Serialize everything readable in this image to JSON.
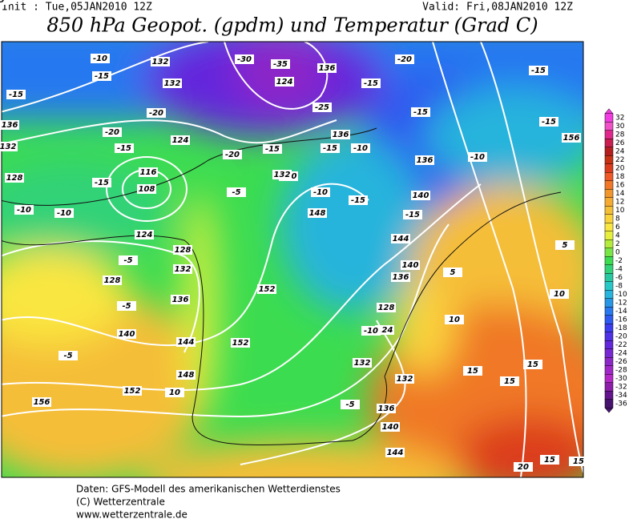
{
  "header": {
    "init": "Init : Tue,05JAN2010 12Z",
    "valid": "Valid: Fri,08JAN2010 12Z",
    "title": "850 hPa Geopot. (gpdm) und Temperatur (Grad C)"
  },
  "map": {
    "labels": [
      "132",
      "-10",
      "-15",
      "-15",
      "-20",
      "136",
      "-20",
      "132",
      "-15",
      "128",
      "-15",
      "-10",
      "-10",
      "124",
      "116",
      "108",
      "132",
      "124",
      "128",
      "132",
      "-5",
      "128",
      "-5",
      "136",
      "140",
      "144",
      "-5",
      "148",
      "152",
      "156",
      "10",
      "152",
      "152",
      "148",
      "140",
      "-10",
      "136",
      "124",
      "-35",
      "-30",
      "-25",
      "136",
      "-15",
      "-10",
      "-15",
      "136",
      "-15",
      "-20",
      "-15",
      "-10",
      "140",
      "-15",
      "144",
      "140",
      "136",
      "128",
      "124",
      "-10",
      "132",
      "132",
      "136",
      "-5",
      "140",
      "144",
      "15",
      "15",
      "15",
      "20",
      "15",
      "15",
      "10",
      "5",
      "5",
      "10",
      "-15",
      "-15",
      "156",
      "-15",
      "-20",
      "132",
      "-5",
      "-5"
    ]
  },
  "colorbar": {
    "levels": [
      32,
      30,
      28,
      26,
      24,
      22,
      20,
      18,
      16,
      14,
      12,
      10,
      8,
      6,
      4,
      2,
      0,
      -2,
      -4,
      -6,
      -8,
      -10,
      -12,
      -14,
      -16,
      -18,
      -20,
      -22,
      -24,
      -26,
      -28,
      -30,
      -32,
      -34,
      -36
    ],
    "colors": [
      "#f03ce0",
      "#f050c8",
      "#e0288c",
      "#c81e50",
      "#b41e1e",
      "#c83214",
      "#dc3c1e",
      "#f05a28",
      "#f07828",
      "#f0962d",
      "#f5aa32",
      "#f5be37",
      "#fad23c",
      "#fae641",
      "#e6f03c",
      "#b4eb3c",
      "#78e646",
      "#3cdc50",
      "#32d278",
      "#28c8a0",
      "#28c8c8",
      "#28b4dc",
      "#2896e6",
      "#2878f0",
      "#2d5af0",
      "#3c3cf0",
      "#5032e6",
      "#6428dc",
      "#7828d2",
      "#8c28c8",
      "#a028c8",
      "#b428c8",
      "#8c1eaa",
      "#64148c",
      "#46146e"
    ]
  },
  "footer": [
    "Daten: GFS-Modell des amerikanischen Wetterdienstes",
    "(C) Wetterzentrale",
    "www.wetterzentrale.de"
  ]
}
